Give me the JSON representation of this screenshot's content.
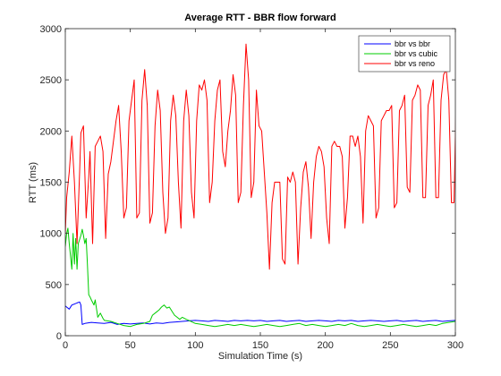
{
  "chart_data": {
    "type": "line",
    "title": "Average RTT - BBR flow forward",
    "xlabel": "Simulation Time (s)",
    "ylabel": "RTT (ms)",
    "xlim": [
      0,
      300
    ],
    "ylim": [
      0,
      3000
    ],
    "xticks": [
      0,
      50,
      100,
      150,
      200,
      250,
      300
    ],
    "yticks": [
      0,
      500,
      1000,
      1500,
      2000,
      2500,
      3000
    ],
    "xtick_labels": [
      "0",
      "50",
      "100",
      "150",
      "200",
      "250",
      "300"
    ],
    "ytick_labels": [
      "0",
      "500",
      "1000",
      "1500",
      "2000",
      "2500",
      "3000"
    ],
    "grid": false,
    "legend_position": "top-right",
    "series": [
      {
        "name": "bbr vs bbr",
        "color": "#0000ff",
        "points": [
          [
            0,
            290
          ],
          [
            1,
            280
          ],
          [
            3,
            260
          ],
          [
            5,
            300
          ],
          [
            7,
            310
          ],
          [
            9,
            320
          ],
          [
            11,
            330
          ],
          [
            12,
            300
          ],
          [
            13,
            110
          ],
          [
            15,
            120
          ],
          [
            20,
            130
          ],
          [
            25,
            125
          ],
          [
            30,
            120
          ],
          [
            35,
            130
          ],
          [
            40,
            110
          ],
          [
            45,
            120
          ],
          [
            50,
            115
          ],
          [
            55,
            120
          ],
          [
            60,
            125
          ],
          [
            65,
            115
          ],
          [
            70,
            125
          ],
          [
            75,
            120
          ],
          [
            80,
            130
          ],
          [
            85,
            135
          ],
          [
            90,
            140
          ],
          [
            95,
            145
          ],
          [
            100,
            150
          ],
          [
            105,
            145
          ],
          [
            110,
            140
          ],
          [
            115,
            150
          ],
          [
            120,
            145
          ],
          [
            125,
            140
          ],
          [
            130,
            150
          ],
          [
            135,
            145
          ],
          [
            140,
            150
          ],
          [
            145,
            145
          ],
          [
            150,
            150
          ],
          [
            155,
            140
          ],
          [
            160,
            145
          ],
          [
            165,
            150
          ],
          [
            170,
            140
          ],
          [
            175,
            145
          ],
          [
            180,
            150
          ],
          [
            185,
            140
          ],
          [
            190,
            145
          ],
          [
            195,
            150
          ],
          [
            200,
            145
          ],
          [
            205,
            140
          ],
          [
            210,
            150
          ],
          [
            215,
            145
          ],
          [
            220,
            150
          ],
          [
            225,
            140
          ],
          [
            230,
            145
          ],
          [
            235,
            150
          ],
          [
            240,
            145
          ],
          [
            245,
            140
          ],
          [
            250,
            145
          ],
          [
            255,
            150
          ],
          [
            260,
            140
          ],
          [
            265,
            145
          ],
          [
            270,
            150
          ],
          [
            275,
            140
          ],
          [
            280,
            145
          ],
          [
            285,
            150
          ],
          [
            290,
            140
          ],
          [
            295,
            145
          ],
          [
            300,
            150
          ]
        ]
      },
      {
        "name": "bbr vs cubic",
        "color": "#00cc00",
        "points": [
          [
            0,
            870
          ],
          [
            1,
            1000
          ],
          [
            2,
            1050
          ],
          [
            3,
            900
          ],
          [
            4,
            780
          ],
          [
            5,
            650
          ],
          [
            6,
            1000
          ],
          [
            7,
            700
          ],
          [
            8,
            950
          ],
          [
            9,
            650
          ],
          [
            10,
            900
          ],
          [
            12,
            980
          ],
          [
            13,
            1040
          ],
          [
            14,
            980
          ],
          [
            15,
            900
          ],
          [
            16,
            950
          ],
          [
            17,
            700
          ],
          [
            18,
            400
          ],
          [
            19,
            380
          ],
          [
            20,
            350
          ],
          [
            22,
            300
          ],
          [
            23,
            350
          ],
          [
            25,
            180
          ],
          [
            27,
            220
          ],
          [
            29,
            170
          ],
          [
            30,
            150
          ],
          [
            35,
            140
          ],
          [
            40,
            120
          ],
          [
            45,
            100
          ],
          [
            50,
            90
          ],
          [
            55,
            110
          ],
          [
            60,
            120
          ],
          [
            65,
            140
          ],
          [
            67,
            200
          ],
          [
            70,
            230
          ],
          [
            72,
            250
          ],
          [
            74,
            280
          ],
          [
            76,
            300
          ],
          [
            78,
            270
          ],
          [
            80,
            280
          ],
          [
            82,
            240
          ],
          [
            84,
            200
          ],
          [
            86,
            180
          ],
          [
            88,
            160
          ],
          [
            90,
            180
          ],
          [
            93,
            160
          ],
          [
            95,
            150
          ],
          [
            100,
            120
          ],
          [
            105,
            110
          ],
          [
            110,
            100
          ],
          [
            115,
            90
          ],
          [
            120,
            100
          ],
          [
            125,
            110
          ],
          [
            130,
            100
          ],
          [
            135,
            110
          ],
          [
            140,
            100
          ],
          [
            145,
            90
          ],
          [
            150,
            100
          ],
          [
            155,
            110
          ],
          [
            160,
            100
          ],
          [
            165,
            90
          ],
          [
            170,
            100
          ],
          [
            175,
            110
          ],
          [
            180,
            120
          ],
          [
            185,
            100
          ],
          [
            190,
            110
          ],
          [
            195,
            100
          ],
          [
            200,
            90
          ],
          [
            205,
            100
          ],
          [
            210,
            110
          ],
          [
            215,
            100
          ],
          [
            220,
            120
          ],
          [
            225,
            100
          ],
          [
            230,
            90
          ],
          [
            235,
            100
          ],
          [
            240,
            110
          ],
          [
            245,
            100
          ],
          [
            250,
            90
          ],
          [
            255,
            100
          ],
          [
            260,
            110
          ],
          [
            265,
            100
          ],
          [
            270,
            90
          ],
          [
            275,
            100
          ],
          [
            280,
            110
          ],
          [
            285,
            100
          ],
          [
            290,
            120
          ],
          [
            295,
            130
          ],
          [
            300,
            140
          ]
        ]
      },
      {
        "name": "bbr vs reno",
        "color": "#ff0000",
        "points": [
          [
            0,
            1000
          ],
          [
            1,
            1350
          ],
          [
            3,
            1600
          ],
          [
            5,
            1950
          ],
          [
            7,
            1500
          ],
          [
            9,
            900
          ],
          [
            11,
            1600
          ],
          [
            12,
            1980
          ],
          [
            14,
            2050
          ],
          [
            16,
            1150
          ],
          [
            18,
            1550
          ],
          [
            19,
            1800
          ],
          [
            21,
            900
          ],
          [
            23,
            1850
          ],
          [
            25,
            1900
          ],
          [
            27,
            1950
          ],
          [
            29,
            1800
          ],
          [
            31,
            950
          ],
          [
            33,
            1580
          ],
          [
            35,
            1700
          ],
          [
            37,
            1900
          ],
          [
            39,
            2100
          ],
          [
            41,
            2250
          ],
          [
            43,
            1800
          ],
          [
            45,
            1150
          ],
          [
            47,
            1250
          ],
          [
            49,
            2100
          ],
          [
            51,
            2300
          ],
          [
            53,
            2500
          ],
          [
            55,
            1150
          ],
          [
            57,
            1200
          ],
          [
            59,
            2300
          ],
          [
            61,
            2600
          ],
          [
            63,
            2250
          ],
          [
            65,
            1100
          ],
          [
            67,
            1200
          ],
          [
            69,
            2050
          ],
          [
            71,
            2400
          ],
          [
            73,
            2200
          ],
          [
            75,
            1400
          ],
          [
            77,
            1000
          ],
          [
            79,
            1150
          ],
          [
            81,
            2100
          ],
          [
            83,
            2350
          ],
          [
            85,
            2150
          ],
          [
            87,
            1500
          ],
          [
            89,
            1050
          ],
          [
            91,
            2100
          ],
          [
            93,
            2400
          ],
          [
            95,
            2150
          ],
          [
            97,
            1400
          ],
          [
            99,
            1150
          ],
          [
            101,
            2100
          ],
          [
            103,
            2450
          ],
          [
            105,
            2400
          ],
          [
            107,
            2500
          ],
          [
            109,
            2300
          ],
          [
            111,
            1300
          ],
          [
            113,
            1500
          ],
          [
            115,
            2100
          ],
          [
            117,
            2400
          ],
          [
            119,
            2500
          ],
          [
            121,
            1800
          ],
          [
            123,
            1650
          ],
          [
            125,
            2000
          ],
          [
            127,
            2200
          ],
          [
            129,
            2550
          ],
          [
            131,
            2350
          ],
          [
            133,
            1300
          ],
          [
            135,
            1400
          ],
          [
            137,
            2250
          ],
          [
            139,
            2850
          ],
          [
            141,
            2500
          ],
          [
            143,
            1350
          ],
          [
            145,
            1500
          ],
          [
            147,
            2400
          ],
          [
            149,
            2050
          ],
          [
            151,
            2000
          ],
          [
            153,
            1600
          ],
          [
            155,
            1200
          ],
          [
            157,
            650
          ],
          [
            159,
            1300
          ],
          [
            161,
            1500
          ],
          [
            163,
            1500
          ],
          [
            165,
            1500
          ],
          [
            167,
            750
          ],
          [
            169,
            700
          ],
          [
            171,
            1550
          ],
          [
            173,
            1500
          ],
          [
            175,
            1600
          ],
          [
            177,
            1500
          ],
          [
            179,
            700
          ],
          [
            181,
            1250
          ],
          [
            183,
            1600
          ],
          [
            185,
            1700
          ],
          [
            187,
            1450
          ],
          [
            189,
            950
          ],
          [
            191,
            1500
          ],
          [
            193,
            1750
          ],
          [
            195,
            1850
          ],
          [
            197,
            1800
          ],
          [
            199,
            1650
          ],
          [
            201,
            1150
          ],
          [
            203,
            900
          ],
          [
            205,
            1850
          ],
          [
            207,
            1900
          ],
          [
            209,
            1850
          ],
          [
            211,
            1850
          ],
          [
            213,
            1750
          ],
          [
            215,
            1050
          ],
          [
            217,
            1350
          ],
          [
            219,
            1950
          ],
          [
            221,
            1950
          ],
          [
            223,
            1850
          ],
          [
            225,
            1950
          ],
          [
            227,
            1750
          ],
          [
            229,
            1100
          ],
          [
            231,
            2000
          ],
          [
            233,
            2150
          ],
          [
            235,
            2100
          ],
          [
            237,
            2050
          ],
          [
            239,
            1150
          ],
          [
            241,
            1250
          ],
          [
            243,
            2100
          ],
          [
            245,
            2150
          ],
          [
            247,
            2200
          ],
          [
            249,
            2200
          ],
          [
            251,
            2250
          ],
          [
            253,
            1250
          ],
          [
            255,
            1300
          ],
          [
            257,
            2200
          ],
          [
            259,
            2250
          ],
          [
            261,
            2350
          ],
          [
            263,
            1450
          ],
          [
            265,
            1400
          ],
          [
            267,
            2300
          ],
          [
            269,
            2350
          ],
          [
            271,
            2450
          ],
          [
            273,
            2400
          ],
          [
            275,
            1350
          ],
          [
            277,
            1350
          ],
          [
            279,
            2250
          ],
          [
            281,
            2350
          ],
          [
            283,
            2500
          ],
          [
            285,
            1350
          ],
          [
            287,
            1350
          ],
          [
            289,
            2300
          ],
          [
            291,
            2550
          ],
          [
            293,
            2600
          ],
          [
            295,
            2300
          ],
          [
            297,
            1300
          ],
          [
            299,
            1300
          ],
          [
            301,
            2600
          ],
          [
            303,
            2650
          ],
          [
            305,
            2500
          ],
          [
            307,
            2200
          ],
          [
            309,
            1550
          ]
        ]
      }
    ]
  }
}
